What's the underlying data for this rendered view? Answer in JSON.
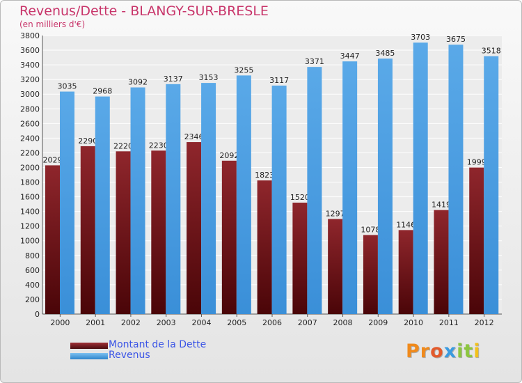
{
  "title": "Revenus/Dette - BLANGY-SUR-BRESLE",
  "subtitle": "(en milliers d'€)",
  "colors": {
    "title": "#c8356a",
    "dette": "#7e1d22",
    "revenus": "#4da1e2",
    "legend_text": "#3b55e6"
  },
  "logo": {
    "text": "Proxiti",
    "letters": [
      {
        "ch": "P",
        "color": "#f08a1c"
      },
      {
        "ch": "r",
        "color": "#f08a1c"
      },
      {
        "ch": "o",
        "color": "#e35a2b"
      },
      {
        "ch": "x",
        "color": "#3a9be0"
      },
      {
        "ch": "i",
        "color": "#8cc63f"
      },
      {
        "ch": "t",
        "color": "#8cc63f"
      },
      {
        "ch": "i",
        "color": "#f2c11b"
      }
    ]
  },
  "chart_data": {
    "type": "bar",
    "title": "Revenus/Dette - BLANGY-SUR-BRESLE",
    "subtitle": "(en milliers d'€)",
    "xlabel": "",
    "ylabel": "",
    "categories": [
      "2000",
      "2001",
      "2002",
      "2003",
      "2004",
      "2005",
      "2006",
      "2007",
      "2008",
      "2009",
      "2010",
      "2011",
      "2012"
    ],
    "series": [
      {
        "name": "Montant de la Dette",
        "color": "#7e1d22",
        "values": [
          2029,
          2290,
          2220,
          2230,
          2346,
          2092,
          1823,
          1520,
          1297,
          1078,
          1146,
          1419,
          1999
        ],
        "labels": [
          "2029",
          "2290",
          "2220",
          "2230",
          "2346",
          "2092",
          "1823",
          "1520",
          "1297",
          "1078",
          "1146",
          "1419",
          "1999"
        ]
      },
      {
        "name": "Revenus",
        "color": "#4da1e2",
        "values": [
          3035,
          2968,
          3092,
          3137,
          3153,
          3255,
          3117,
          3371,
          3447,
          3485,
          3703,
          3675,
          3518
        ],
        "labels": [
          "3035",
          "2968",
          "3092",
          "3137",
          "3153",
          "3255",
          "3117",
          "3371",
          "3447",
          "3485",
          "3703",
          "3675",
          "3518"
        ]
      }
    ],
    "ylim": [
      0,
      3800
    ],
    "yticks": [
      0,
      200,
      400,
      600,
      800,
      1000,
      1200,
      1400,
      1600,
      1800,
      2000,
      2200,
      2400,
      2600,
      2800,
      3000,
      3200,
      3400,
      3600,
      3800
    ],
    "ytick_labels": [
      "0",
      "200",
      "400",
      "600",
      "800",
      "1000",
      "1200",
      "1400",
      "1600",
      "1800",
      "2000",
      "2200",
      "2400",
      "2600",
      "2800",
      "3000",
      "3200",
      "3400",
      "3600",
      "3800"
    ],
    "grid": true,
    "legend_position": "bottom-left"
  }
}
